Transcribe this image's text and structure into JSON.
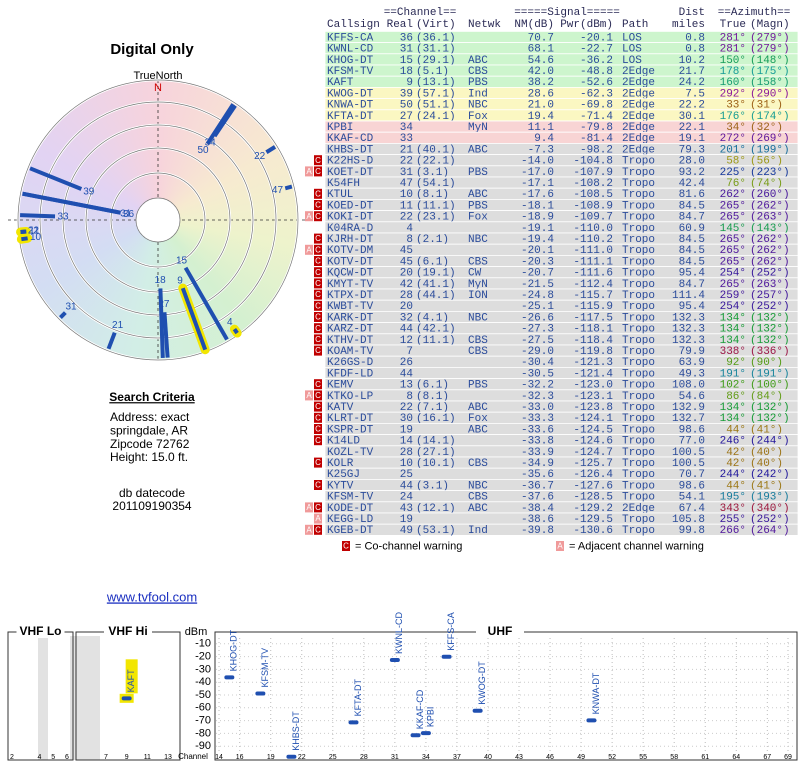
{
  "header": {
    "title": "Digital Only",
    "north_label": "TrueNorth",
    "north_mark": "N"
  },
  "search": {
    "title": "Search Criteria",
    "lines": [
      "Address: exact",
      "springdale, AR",
      "Zipcode 72762",
      "Height: 15.0 ft."
    ],
    "datecode_label": "db datecode",
    "datecode": "201109190354"
  },
  "link": "www.tvfool.com",
  "table": {
    "groups": [
      "==Channel==",
      "=====Signal=====",
      "Dist",
      "==Azimuth=="
    ],
    "columns": [
      "Callsign",
      "Real",
      "(Virt)",
      "Netwk",
      "NM(dB)",
      "Pwr(dBm)",
      "Path",
      "miles",
      "True",
      "(Magn)"
    ],
    "rows": [
      {
        "callsign": "KFFS-CA",
        "real": 36,
        "virt": "(36.1)",
        "nm": "70.7",
        "pwr": "-20.1",
        "path": "LOS",
        "dist": "0.8",
        "az_true": "281°",
        "az_magn": "(279°)"
      },
      {
        "callsign": "KWNL-CD",
        "real": 31,
        "virt": "(31.1)",
        "nm": "68.1",
        "pwr": "-22.7",
        "path": "LOS",
        "dist": "0.8",
        "az_true": "281°",
        "az_magn": "(279°)"
      },
      {
        "callsign": "KHOG-DT",
        "real": 15,
        "virt": "(29.1)",
        "netwk": "ABC",
        "nm": "54.6",
        "pwr": "-36.2",
        "path": "LOS",
        "dist": "10.2",
        "az_true": "150°",
        "az_magn": "(148°)"
      },
      {
        "callsign": "KFSM-TV",
        "real": 18,
        "virt": "(5.1)",
        "netwk": "CBS",
        "nm": "42.0",
        "pwr": "-48.8",
        "path": "2Edge",
        "dist": "21.7",
        "az_true": "178°",
        "az_magn": "(175°)"
      },
      {
        "callsign": "KAFT",
        "real": 9,
        "virt": "(13.1)",
        "netwk": "PBS",
        "nm": "38.2",
        "pwr": "-52.6",
        "path": "2Edge",
        "dist": "24.2",
        "az_true": "160°",
        "az_magn": "(158°)"
      },
      {
        "callsign": "KWOG-DT",
        "real": 39,
        "virt": "(57.1)",
        "netwk": "Ind",
        "nm": "28.6",
        "pwr": "-62.3",
        "path": "2Edge",
        "dist": "7.5",
        "az_true": "292°",
        "az_magn": "(290°)"
      },
      {
        "callsign": "KNWA-DT",
        "real": 50,
        "virt": "(51.1)",
        "netwk": "NBC",
        "nm": "21.0",
        "pwr": "-69.8",
        "path": "2Edge",
        "dist": "22.2",
        "az_true": "33°",
        "az_magn": "(31°)"
      },
      {
        "callsign": "KFTA-DT",
        "real": 27,
        "virt": "(24.1)",
        "netwk": "Fox",
        "nm": "19.4",
        "pwr": "-71.4",
        "path": "2Edge",
        "dist": "30.1",
        "az_true": "176°",
        "az_magn": "(174°)"
      },
      {
        "callsign": "KPBI",
        "real": 34,
        "netwk": "MyN",
        "nm": "11.1",
        "pwr": "-79.8",
        "path": "2Edge",
        "dist": "22.1",
        "az_true": "34°",
        "az_magn": "(32°)"
      },
      {
        "callsign": "KKAF-CD",
        "real": 33,
        "nm": "9.4",
        "pwr": "-81.4",
        "path": "2Edge",
        "dist": "19.1",
        "az_true": "272°",
        "az_magn": "(269°)"
      },
      {
        "callsign": "KHBS-DT",
        "real": 21,
        "virt": "(40.1)",
        "netwk": "ABC",
        "nm": "-7.3",
        "pwr": "-98.2",
        "path": "2Edge",
        "dist": "79.3",
        "az_true": "201°",
        "az_magn": "(199°)"
      },
      {
        "warn": [
          "C"
        ],
        "callsign": "K22HS-D",
        "real": 22,
        "virt": "(22.1)",
        "nm": "-14.0",
        "pwr": "-104.8",
        "path": "Tropo",
        "dist": "28.0",
        "az_true": "58°",
        "az_magn": "(56°)"
      },
      {
        "warn": [
          "A",
          "C"
        ],
        "callsign": "KOET-DT",
        "real": 31,
        "virt": "(3.1)",
        "netwk": "PBS",
        "nm": "-17.0",
        "pwr": "-107.9",
        "path": "Tropo",
        "dist": "93.2",
        "az_true": "225°",
        "az_magn": "(223°)"
      },
      {
        "callsign": "K54FH",
        "real": 47,
        "virt": "(54.1)",
        "nm": "-17.1",
        "pwr": "-108.2",
        "path": "Tropo",
        "dist": "42.4",
        "az_true": "76°",
        "az_magn": "(74°)"
      },
      {
        "warn": [
          "C"
        ],
        "callsign": "KTUL",
        "real": 10,
        "virt": "(8.1)",
        "netwk": "ABC",
        "nm": "-17.6",
        "pwr": "-108.5",
        "path": "Tropo",
        "dist": "81.6",
        "az_true": "262°",
        "az_magn": "(260°)"
      },
      {
        "warn": [
          "C"
        ],
        "callsign": "KOED-DT",
        "real": 11,
        "virt": "(11.1)",
        "netwk": "PBS",
        "nm": "-18.1",
        "pwr": "-108.9",
        "path": "Tropo",
        "dist": "84.5",
        "az_true": "265°",
        "az_magn": "(262°)"
      },
      {
        "warn": [
          "A",
          "C"
        ],
        "callsign": "KOKI-DT",
        "real": 22,
        "virt": "(23.1)",
        "netwk": "Fox",
        "nm": "-18.9",
        "pwr": "-109.7",
        "path": "Tropo",
        "dist": "84.7",
        "az_true": "265°",
        "az_magn": "(263°)"
      },
      {
        "callsign": "K04RA-D",
        "real": 4,
        "nm": "-19.1",
        "pwr": "-110.0",
        "path": "Tropo",
        "dist": "60.9",
        "az_true": "145°",
        "az_magn": "(143°)"
      },
      {
        "warn": [
          "C"
        ],
        "callsign": "KJRH-DT",
        "real": 8,
        "virt": "(2.1)",
        "netwk": "NBC",
        "nm": "-19.4",
        "pwr": "-110.2",
        "path": "Tropo",
        "dist": "84.5",
        "az_true": "265°",
        "az_magn": "(262°)"
      },
      {
        "warn": [
          "A",
          "C"
        ],
        "callsign": "KOTV-DM",
        "real": 45,
        "nm": "-20.1",
        "pwr": "-111.0",
        "path": "Tropo",
        "dist": "84.5",
        "az_true": "265°",
        "az_magn": "(262°)"
      },
      {
        "warn": [
          "C"
        ],
        "callsign": "KOTV-DT",
        "real": 45,
        "virt": "(6.1)",
        "netwk": "CBS",
        "nm": "-20.3",
        "pwr": "-111.1",
        "path": "Tropo",
        "dist": "84.5",
        "az_true": "265°",
        "az_magn": "(262°)"
      },
      {
        "warn": [
          "C"
        ],
        "callsign": "KQCW-DT",
        "real": 20,
        "virt": "(19.1)",
        "netwk": "CW",
        "nm": "-20.7",
        "pwr": "-111.6",
        "path": "Tropo",
        "dist": "95.4",
        "az_true": "254°",
        "az_magn": "(252°)"
      },
      {
        "warn": [
          "C"
        ],
        "callsign": "KMYT-TV",
        "real": 42,
        "virt": "(41.1)",
        "netwk": "MyN",
        "nm": "-21.5",
        "pwr": "-112.4",
        "path": "Tropo",
        "dist": "84.7",
        "az_true": "265°",
        "az_magn": "(263°)"
      },
      {
        "warn": [
          "C"
        ],
        "callsign": "KTPX-DT",
        "real": 28,
        "virt": "(44.1)",
        "netwk": "ION",
        "nm": "-24.8",
        "pwr": "-115.7",
        "path": "Tropo",
        "dist": "111.4",
        "az_true": "259°",
        "az_magn": "(257°)"
      },
      {
        "warn": [
          "C"
        ],
        "callsign": "KWBT-TV",
        "real": 20,
        "nm": "-25.1",
        "pwr": "-115.9",
        "path": "Tropo",
        "dist": "95.4",
        "az_true": "254°",
        "az_magn": "(252°)"
      },
      {
        "warn": [
          "C"
        ],
        "callsign": "KARK-DT",
        "real": 32,
        "virt": "(4.1)",
        "netwk": "NBC",
        "nm": "-26.6",
        "pwr": "-117.5",
        "path": "Tropo",
        "dist": "132.3",
        "az_true": "134°",
        "az_magn": "(132°)"
      },
      {
        "warn": [
          "C"
        ],
        "callsign": "KARZ-DT",
        "real": 44,
        "virt": "(42.1)",
        "nm": "-27.3",
        "pwr": "-118.1",
        "path": "Tropo",
        "dist": "132.3",
        "az_true": "134°",
        "az_magn": "(132°)"
      },
      {
        "warn": [
          "C"
        ],
        "callsign": "KTHV-DT",
        "real": 12,
        "virt": "(11.1)",
        "netwk": "CBS",
        "nm": "-27.5",
        "pwr": "-118.4",
        "path": "Tropo",
        "dist": "132.3",
        "az_true": "134°",
        "az_magn": "(132°)"
      },
      {
        "warn": [
          "C"
        ],
        "callsign": "KOAM-TV",
        "real": 7,
        "netwk": "CBS",
        "nm": "-29.0",
        "pwr": "-119.8",
        "path": "Tropo",
        "dist": "79.9",
        "az_true": "338°",
        "az_magn": "(336°)"
      },
      {
        "callsign": "K26GS-D",
        "real": 26,
        "nm": "-30.4",
        "pwr": "-121.3",
        "path": "Tropo",
        "dist": "63.9",
        "az_true": "92°",
        "az_magn": "(90°)"
      },
      {
        "callsign": "KFDF-LD",
        "real": 44,
        "nm": "-30.5",
        "pwr": "-121.4",
        "path": "Tropo",
        "dist": "49.3",
        "az_true": "191°",
        "az_magn": "(191°)"
      },
      {
        "warn": [
          "C"
        ],
        "callsign": "KEMV",
        "real": 13,
        "virt": "(6.1)",
        "netwk": "PBS",
        "nm": "-32.2",
        "pwr": "-123.0",
        "path": "Tropo",
        "dist": "108.0",
        "az_true": "102°",
        "az_magn": "(100°)"
      },
      {
        "warn": [
          "A",
          "C"
        ],
        "callsign": "KTKO-LP",
        "real": 8,
        "virt": "(8.1)",
        "nm": "-32.3",
        "pwr": "-123.1",
        "path": "Tropo",
        "dist": "54.6",
        "az_true": "86°",
        "az_magn": "(84°)"
      },
      {
        "warn": [
          "C"
        ],
        "callsign": "KATV",
        "real": 22,
        "virt": "(7.1)",
        "netwk": "ABC",
        "nm": "-33.0",
        "pwr": "-123.8",
        "path": "Tropo",
        "dist": "132.9",
        "az_true": "134°",
        "az_magn": "(132°)"
      },
      {
        "warn": [
          "C"
        ],
        "callsign": "KLRT-DT",
        "real": 30,
        "virt": "(16.1)",
        "netwk": "Fox",
        "nm": "-33.3",
        "pwr": "-124.1",
        "path": "Tropo",
        "dist": "132.7",
        "az_true": "134°",
        "az_magn": "(132°)"
      },
      {
        "warn": [
          "C"
        ],
        "callsign": "KSPR-DT",
        "real": 19,
        "netwk": "ABC",
        "nm": "-33.6",
        "pwr": "-124.5",
        "path": "Tropo",
        "dist": "98.6",
        "az_true": "44°",
        "az_magn": "(41°)"
      },
      {
        "warn": [
          "C"
        ],
        "callsign": "K14LD",
        "real": 14,
        "virt": "(14.1)",
        "nm": "-33.8",
        "pwr": "-124.6",
        "path": "Tropo",
        "dist": "77.0",
        "az_true": "246°",
        "az_magn": "(244°)"
      },
      {
        "callsign": "KOZL-TV",
        "real": 28,
        "virt": "(27.1)",
        "nm": "-33.9",
        "pwr": "-124.7",
        "path": "Tropo",
        "dist": "100.5",
        "az_true": "42°",
        "az_magn": "(40°)"
      },
      {
        "warn": [
          "C"
        ],
        "callsign": "KOLR",
        "real": 10,
        "virt": "(10.1)",
        "netwk": "CBS",
        "nm": "-34.9",
        "pwr": "-125.7",
        "path": "Tropo",
        "dist": "100.5",
        "az_true": "42°",
        "az_magn": "(40°)"
      },
      {
        "callsign": "K25GJ",
        "real": 25,
        "nm": "-35.6",
        "pwr": "-126.4",
        "path": "Tropo",
        "dist": "70.7",
        "az_true": "244°",
        "az_magn": "(242°)"
      },
      {
        "warn": [
          "C"
        ],
        "callsign": "KYTV",
        "real": 44,
        "virt": "(3.1)",
        "netwk": "NBC",
        "nm": "-36.7",
        "pwr": "-127.6",
        "path": "Tropo",
        "dist": "98.6",
        "az_true": "44°",
        "az_magn": "(41°)"
      },
      {
        "callsign": "KFSM-TV",
        "real": 24,
        "netwk": "CBS",
        "nm": "-37.6",
        "pwr": "-128.5",
        "path": "Tropo",
        "dist": "54.1",
        "az_true": "195°",
        "az_magn": "(193°)"
      },
      {
        "warn": [
          "A",
          "C"
        ],
        "callsign": "KODE-DT",
        "real": 43,
        "virt": "(12.1)",
        "netwk": "ABC",
        "nm": "-38.4",
        "pwr": "-129.2",
        "path": "2Edge",
        "dist": "67.4",
        "az_true": "343°",
        "az_magn": "(340°)"
      },
      {
        "warn": [
          "A"
        ],
        "callsign": "KEGG-LD",
        "real": 19,
        "nm": "-38.6",
        "pwr": "-129.5",
        "path": "Tropo",
        "dist": "105.8",
        "az_true": "255°",
        "az_magn": "(252°)"
      },
      {
        "warn": [
          "A",
          "C"
        ],
        "callsign": "KGEB-DT",
        "real": 49,
        "virt": "(53.1)",
        "netwk": "Ind",
        "nm": "-39.8",
        "pwr": "-130.6",
        "path": "Tropo",
        "dist": "99.8",
        "az_true": "266°",
        "az_magn": "(264°)"
      }
    ]
  },
  "legend": [
    {
      "mark": "C",
      "text": "= Co-channel warning"
    },
    {
      "mark": "A",
      "text": "= Adjacent channel warning"
    }
  ],
  "spectrum": {
    "y_label": "dBm",
    "x_label": "Channel",
    "ylim": [
      -100,
      0
    ],
    "yticks": [
      -10,
      -20,
      -30,
      -40,
      -50,
      -60,
      -70,
      -80,
      -90
    ],
    "bands": [
      {
        "name": "VHF Lo",
        "xlim": [
          2,
          6
        ],
        "xticks": [
          2,
          4,
          5,
          6
        ]
      },
      {
        "name": "VHF Hi",
        "xlim": [
          7,
          13
        ],
        "xticks": [
          7,
          9,
          11,
          13
        ]
      },
      {
        "name": "UHF",
        "xlim": [
          14,
          69
        ],
        "xticks": [
          14,
          16,
          19,
          22,
          25,
          28,
          31,
          34,
          37,
          40,
          43,
          46,
          49,
          52,
          55,
          58,
          61,
          64,
          67,
          69
        ]
      }
    ]
  }
}
